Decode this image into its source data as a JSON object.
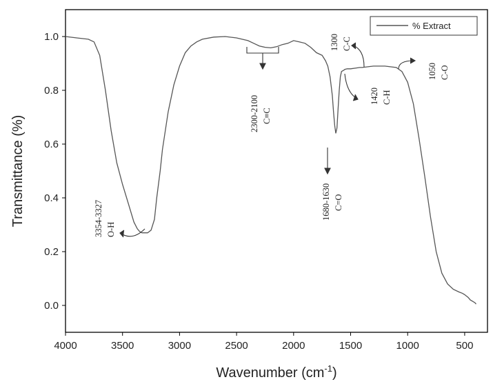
{
  "chart_data": {
    "type": "line",
    "title": "",
    "xlabel": "Wavenumber (cm",
    "xlabel_sup": "-1",
    "xlabel_close": ")",
    "ylabel": "Transmittance (%)",
    "xlim": [
      4000,
      300
    ],
    "ylim": [
      -0.1,
      1.1
    ],
    "x_ticks": [
      4000,
      3500,
      3000,
      2500,
      2000,
      1500,
      1000,
      500
    ],
    "x_tick_labels": [
      "4000",
      "3500",
      "3000",
      "2500",
      "2000",
      "1500",
      "1000",
      "500"
    ],
    "y_ticks": [
      0.0,
      0.2,
      0.4,
      0.6,
      0.8,
      1.0
    ],
    "y_tick_labels": [
      "0.0",
      "0.2",
      "0.4",
      "0.6",
      "0.8",
      "1.0"
    ],
    "grid": false,
    "legend_position": "top-right",
    "line_color": "#555555",
    "series": [
      {
        "name": "% Extract",
        "x": [
          4000,
          3900,
          3800,
          3750,
          3700,
          3650,
          3600,
          3550,
          3500,
          3450,
          3400,
          3370,
          3350,
          3330,
          3300,
          3280,
          3250,
          3220,
          3200,
          3170,
          3150,
          3100,
          3050,
          3000,
          2950,
          2900,
          2850,
          2800,
          2700,
          2600,
          2500,
          2400,
          2350,
          2300,
          2250,
          2200,
          2150,
          2100,
          2050,
          2000,
          1950,
          1900,
          1850,
          1800,
          1750,
          1720,
          1700,
          1680,
          1660,
          1650,
          1640,
          1630,
          1620,
          1610,
          1600,
          1590,
          1580,
          1560,
          1550,
          1530,
          1500,
          1450,
          1420,
          1400,
          1300,
          1200,
          1100,
          1050,
          1000,
          950,
          900,
          850,
          800,
          750,
          700,
          650,
          600,
          550,
          520,
          500,
          470,
          450,
          430,
          410,
          400
        ],
        "y": [
          1.0,
          0.995,
          0.99,
          0.98,
          0.93,
          0.8,
          0.65,
          0.53,
          0.45,
          0.38,
          0.31,
          0.285,
          0.275,
          0.27,
          0.27,
          0.27,
          0.28,
          0.32,
          0.4,
          0.5,
          0.58,
          0.72,
          0.82,
          0.89,
          0.94,
          0.965,
          0.98,
          0.99,
          0.998,
          1.0,
          0.995,
          0.985,
          0.975,
          0.965,
          0.96,
          0.958,
          0.962,
          0.97,
          0.975,
          0.985,
          0.98,
          0.975,
          0.96,
          0.94,
          0.93,
          0.91,
          0.89,
          0.85,
          0.78,
          0.72,
          0.67,
          0.64,
          0.66,
          0.73,
          0.8,
          0.85,
          0.87,
          0.875,
          0.878,
          0.88,
          0.88,
          0.883,
          0.885,
          0.885,
          0.89,
          0.89,
          0.885,
          0.87,
          0.83,
          0.75,
          0.62,
          0.48,
          0.33,
          0.2,
          0.12,
          0.08,
          0.06,
          0.05,
          0.045,
          0.04,
          0.03,
          0.02,
          0.015,
          0.01,
          0.005
        ]
      }
    ],
    "annotations": [
      {
        "id": "oh",
        "lines": [
          "3354-3327",
          "O-H"
        ]
      },
      {
        "id": "cc-triple",
        "lines": [
          "2300-2100",
          "C≡C"
        ]
      },
      {
        "id": "co-double",
        "lines": [
          "1680-1630",
          "C=O"
        ]
      },
      {
        "id": "cc",
        "lines": [
          "1300",
          "C-C"
        ]
      },
      {
        "id": "ch",
        "lines": [
          "1420",
          "C-H"
        ]
      },
      {
        "id": "co",
        "lines": [
          "1050",
          "C-O"
        ]
      }
    ]
  }
}
